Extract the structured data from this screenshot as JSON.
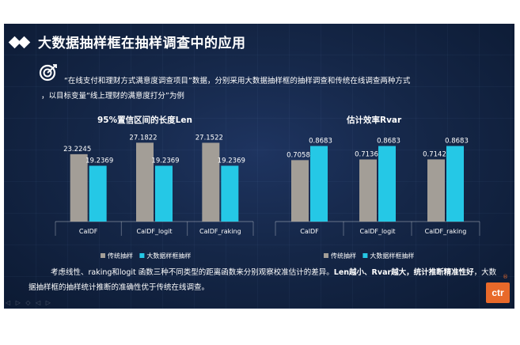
{
  "slide": {
    "title": "大数据抽样框在抽样调查中的应用",
    "intro_line1": "“在线支付和理财方式满意度调查项目”数据，分别采用大数据抽样框的抽样调查和传统在线调查两种方式",
    "intro_line2": "，以目标变量“线上理财的满意度打分”为例",
    "conclusion": {
      "part1": "考虑线性、raking和logit 函数三种不同类型的距离函数来分别观察校准估计的差异。",
      "part2_bold": "Len越小、Rvar越大，统计推断精准性好",
      "part3": "，大数据抽样框的抽样统计推断的准确性优于传统在线调查。"
    },
    "logo_text": "ctr",
    "logo_mark": "®",
    "nav_controls": "◁ ▷ ◇ ◁ ▷"
  },
  "colors": {
    "traditional": "#a39e97",
    "bigdata": "#25c8e6",
    "background": "#14264a",
    "logo": "#e8692a"
  },
  "chart_data": [
    {
      "type": "bar",
      "title": "95%置信区间的长度Len",
      "categories": [
        "CalDF",
        "CalDF_logit",
        "CalDF_raking"
      ],
      "series": [
        {
          "name": "传统抽样",
          "values": [
            23.2245,
            27.1822,
            27.1522
          ],
          "labels": [
            "23.2245",
            "27.1822",
            "27.1522"
          ]
        },
        {
          "name": "大数据样框抽样",
          "values": [
            19.2369,
            19.2369,
            19.2369
          ],
          "labels": [
            "19.2369",
            "19.2369",
            "19.2369"
          ]
        }
      ],
      "ylim": [
        0,
        30
      ],
      "grid": false,
      "legend": "bottom"
    },
    {
      "type": "bar",
      "title": "估计效率Rvar",
      "categories": [
        "CalDF",
        "CalDF_logit",
        "CalDF_raking"
      ],
      "series": [
        {
          "name": "传统抽样",
          "values": [
            0.7058,
            0.7136,
            0.7142
          ],
          "labels": [
            "0.7058",
            "0.7136",
            "0.7142"
          ]
        },
        {
          "name": "大数据样框抽样",
          "values": [
            0.8683,
            0.8683,
            0.8683
          ],
          "labels": [
            "0.8683",
            "0.8683",
            "0.8683"
          ]
        }
      ],
      "ylim": [
        0,
        1.0
      ],
      "grid": false,
      "legend": "bottom"
    }
  ]
}
